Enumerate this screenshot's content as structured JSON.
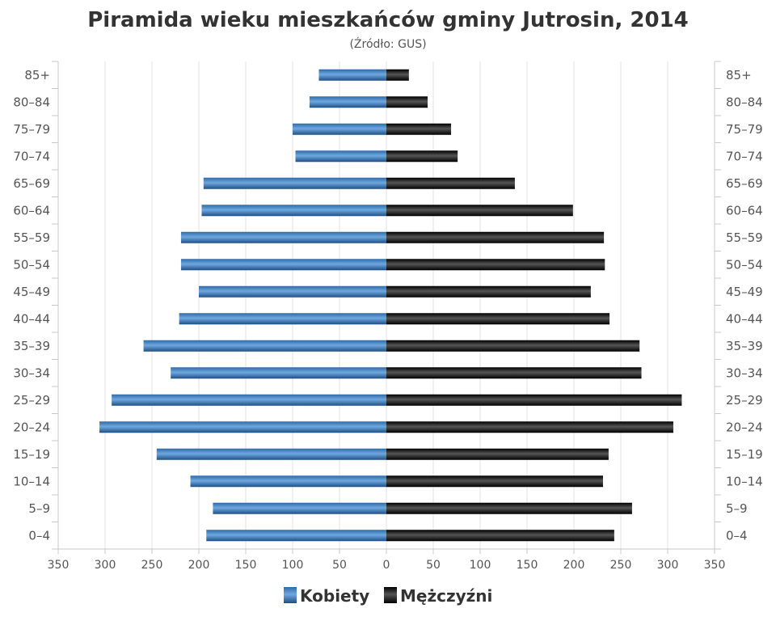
{
  "chart_data": {
    "type": "bar",
    "orientation": "horizontal",
    "title": "Piramida wieku mieszkańców gminy Jutrosin, 2014",
    "subtitle": "(Źródło: GUS)",
    "categories": [
      "85+",
      "80-84",
      "75-79",
      "70-74",
      "65-69",
      "60-64",
      "55-59",
      "50-54",
      "45-49",
      "40-44",
      "35-39",
      "30-34",
      "25-29",
      "20-24",
      "15-19",
      "10-14",
      "5-9",
      "0-4"
    ],
    "series": [
      {
        "name": "Kobiety",
        "color": "#3b7dbf",
        "values": [
          72,
          82,
          100,
          97,
          195,
          197,
          219,
          219,
          200,
          221,
          259,
          230,
          293,
          306,
          245,
          209,
          185,
          192
        ]
      },
      {
        "name": "Mężczyźni",
        "color": "#1a1a1a",
        "values": [
          24,
          44,
          69,
          76,
          137,
          199,
          232,
          233,
          218,
          238,
          270,
          272,
          315,
          306,
          237,
          231,
          262,
          243
        ]
      }
    ],
    "xlim": [
      -350,
      350
    ],
    "xticks": [
      "350",
      "300",
      "250",
      "200",
      "150",
      "100",
      "50",
      "0",
      "50",
      "100",
      "150",
      "200",
      "250",
      "300",
      "350"
    ],
    "grid": true,
    "legend": "bottom-center"
  }
}
